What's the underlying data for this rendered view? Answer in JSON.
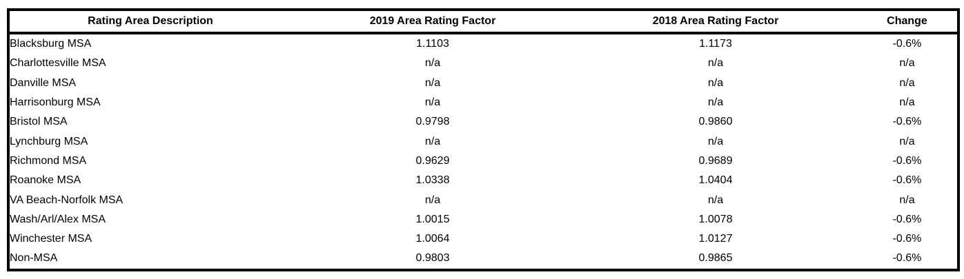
{
  "chart_data": {
    "type": "table",
    "title": "",
    "columns": [
      "Rating Area Description",
      "2019 Area Rating Factor",
      "2018 Area Rating Factor",
      "Change"
    ],
    "rows": [
      [
        "Blacksburg MSA",
        "1.1103",
        "1.1173",
        "-0.6%"
      ],
      [
        "Charlottesville MSA",
        "n/a",
        "n/a",
        "n/a"
      ],
      [
        "Danville MSA",
        "n/a",
        "n/a",
        "n/a"
      ],
      [
        "Harrisonburg MSA",
        "n/a",
        "n/a",
        "n/a"
      ],
      [
        "Bristol MSA",
        "0.9798",
        "0.9860",
        "-0.6%"
      ],
      [
        "Lynchburg MSA",
        "n/a",
        "n/a",
        "n/a"
      ],
      [
        "Richmond MSA",
        "0.9629",
        "0.9689",
        "-0.6%"
      ],
      [
        "Roanoke MSA",
        "1.0338",
        "1.0404",
        "-0.6%"
      ],
      [
        "VA Beach-Norfolk MSA",
        "n/a",
        "n/a",
        "n/a"
      ],
      [
        "Wash/Arl/Alex MSA",
        "1.0015",
        "1.0078",
        "-0.6%"
      ],
      [
        "Winchester MSA",
        "1.0064",
        "1.0127",
        "-0.6%"
      ],
      [
        "Non-MSA",
        "0.9803",
        "0.9865",
        "-0.6%"
      ]
    ],
    "column_alignments": [
      "left",
      "center",
      "center",
      "center"
    ],
    "colors": {
      "border": "#000000",
      "text": "#000000",
      "background": "#ffffff"
    }
  }
}
